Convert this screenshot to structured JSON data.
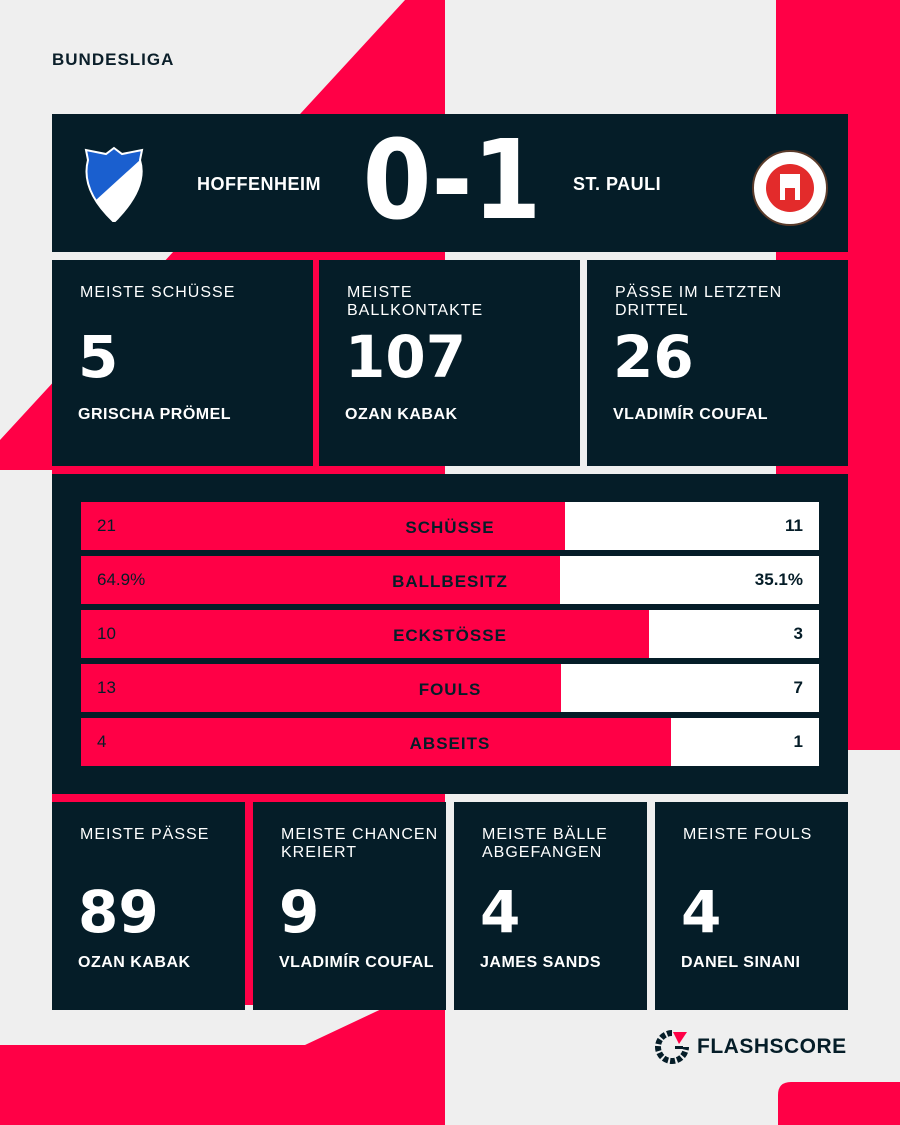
{
  "colors": {
    "accent": "#ff0046",
    "panel": "#051d28",
    "background": "#efefef"
  },
  "league": "BUNDESLIGA",
  "match": {
    "home": {
      "name": "HOFFENHEIM",
      "logo": "tsg-1899-hoffenheim-crest",
      "logo_text": "TSG 1899 Hoffenheim"
    },
    "away": {
      "name": "ST. PAULI",
      "logo": "fc-st-pauli-crest",
      "logo_text": "FC ST. PAULI 1910"
    },
    "score": "0-1"
  },
  "top_cards": [
    {
      "label": "MEISTE SCHÜSSE",
      "value": "5",
      "player": "GRISCHA PRÖMEL"
    },
    {
      "label": "MEISTE BALLKONTAKTE",
      "value": "107",
      "player": "OZAN KABAK"
    },
    {
      "label": "PÄSSE IM LETZTEN DRITTEL",
      "value": "26",
      "player": "VLADIMÍR COUFAL"
    }
  ],
  "stats": [
    {
      "name": "SCHÜSSE",
      "home": "21",
      "away": "11",
      "home_share": 0.656
    },
    {
      "name": "BALLBESITZ",
      "home": "64.9%",
      "away": "35.1%",
      "home_share": 0.649
    },
    {
      "name": "ECKSTÖSSE",
      "home": "10",
      "away": "3",
      "home_share": 0.769
    },
    {
      "name": "FOULS",
      "home": "13",
      "away": "7",
      "home_share": 0.65
    },
    {
      "name": "ABSEITS",
      "home": "4",
      "away": "1",
      "home_share": 0.8
    }
  ],
  "bottom_cards": [
    {
      "label": "MEISTE PÄSSE",
      "value": "89",
      "player": "OZAN KABAK"
    },
    {
      "label": "MEISTE CHANCEN KREIERT",
      "value": "9",
      "player": "VLADIMÍR COUFAL"
    },
    {
      "label": "MEISTE BÄLLE ABGEFANGEN",
      "value": "4",
      "player": "JAMES SANDS"
    },
    {
      "label": "MEISTE FOULS",
      "value": "4",
      "player": "DANEL SINANI"
    }
  ],
  "brand": {
    "name": "FLASHSCORE",
    "logo": "flashscore-logo"
  }
}
